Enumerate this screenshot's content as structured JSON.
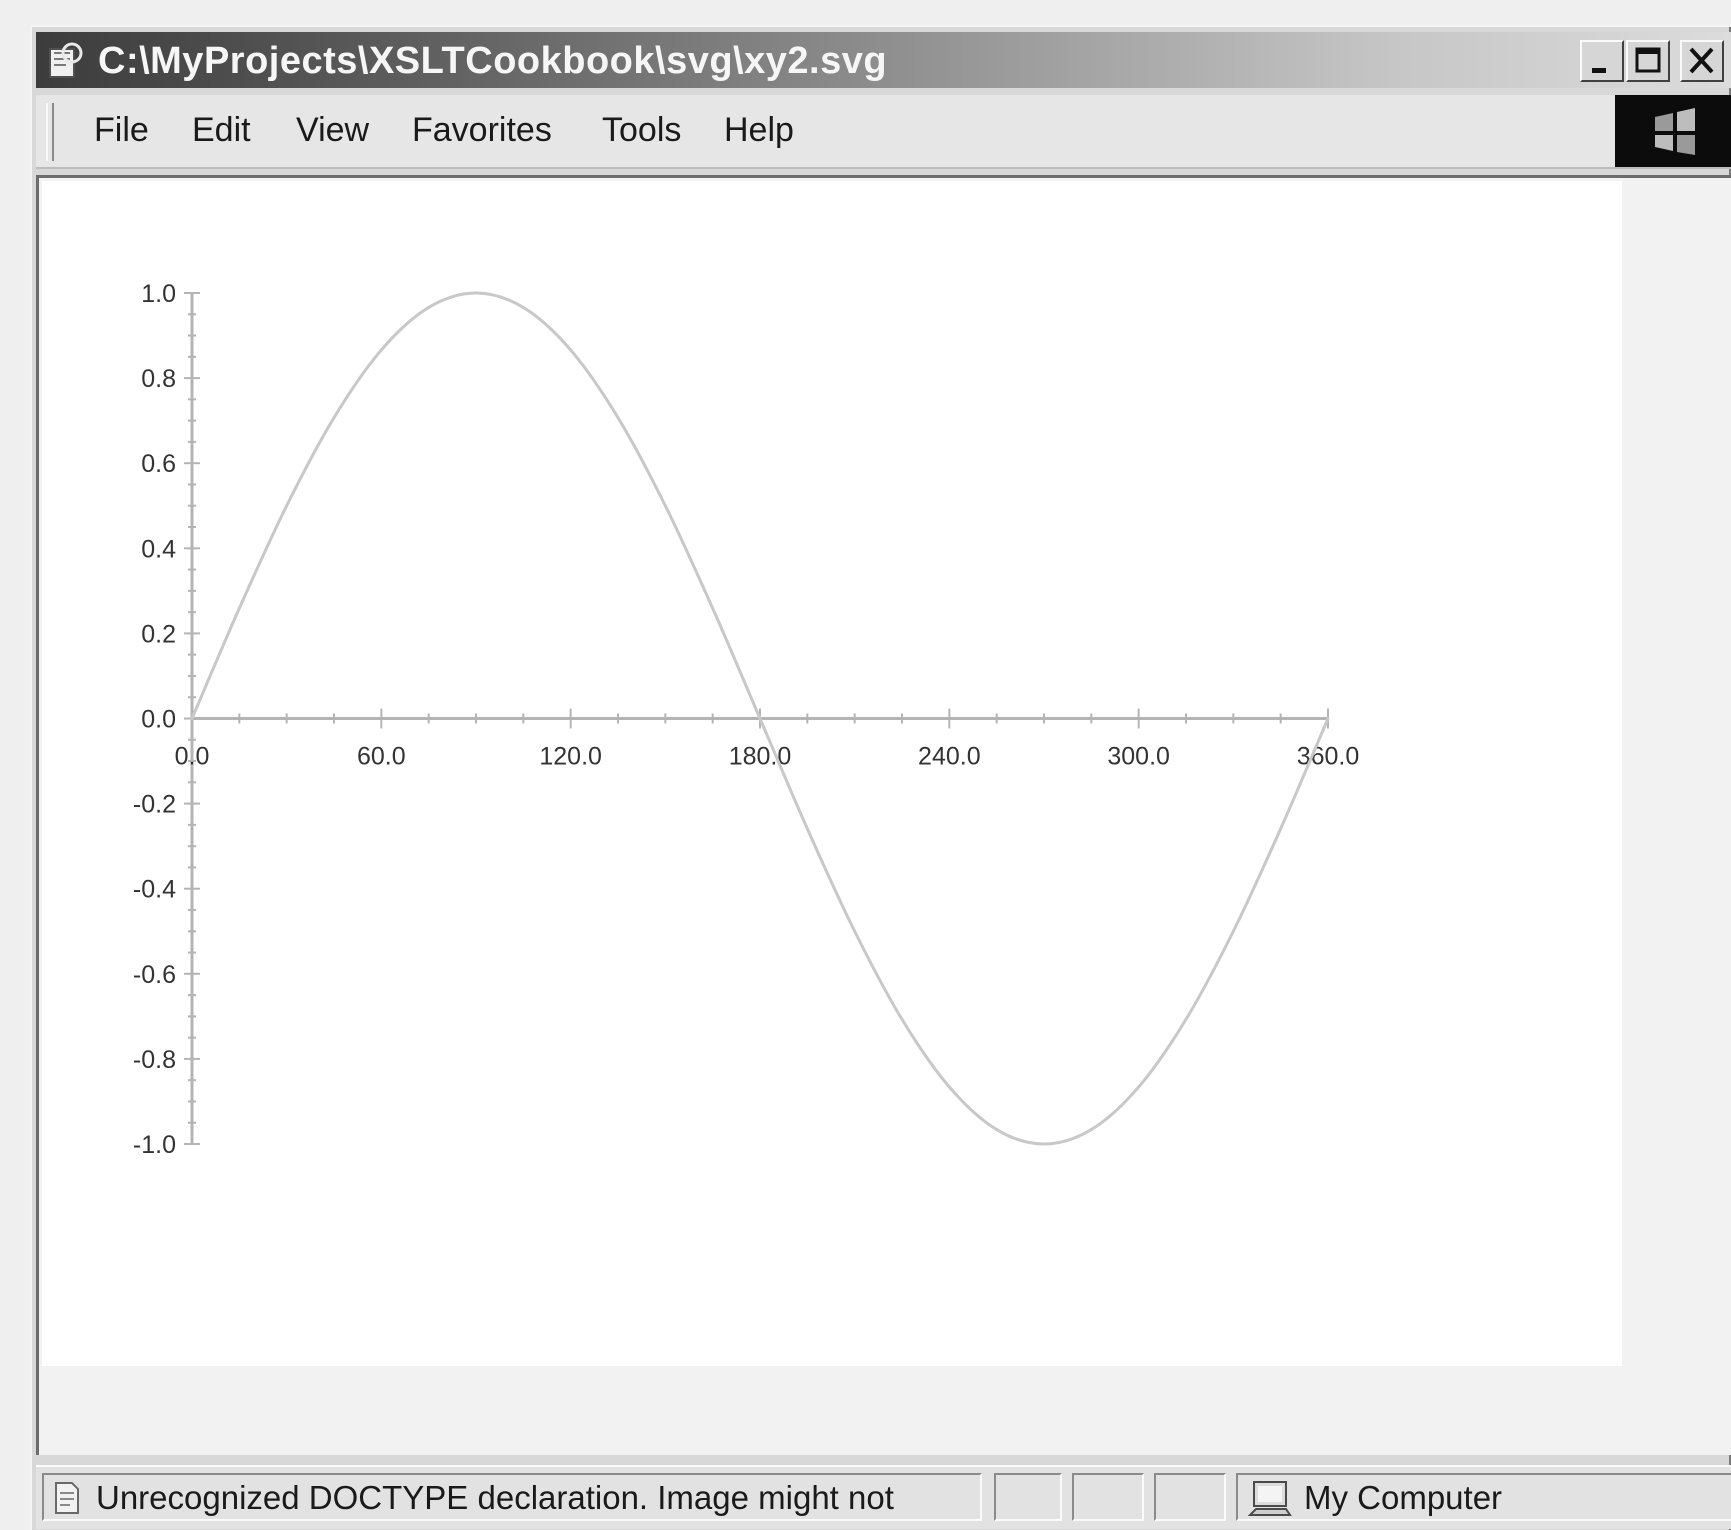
{
  "window": {
    "title": "C:\\MyProjects\\XSLTCookbook\\svg\\xy2.svg",
    "controls": [
      "minimize",
      "maximize",
      "close"
    ]
  },
  "menu": {
    "items": [
      "File",
      "Edit",
      "View",
      "Favorites",
      "Tools",
      "Help"
    ]
  },
  "status": {
    "message": "Unrecognized DOCTYPE declaration. Image might not",
    "zone": "My Computer"
  },
  "icons": {
    "app": "ie-document-icon",
    "status": "document-icon",
    "zone": "computer-icon",
    "throbber": "windows-logo-icon"
  },
  "colors": {
    "curve": "#c8c8c8",
    "axis": "#b4b4b4",
    "title_bar_dark": "#3c3c3c",
    "title_bar_light": "#dcdcdc"
  },
  "chart_data": {
    "type": "line",
    "title": "",
    "xlabel": "",
    "ylabel": "",
    "xlim": [
      0,
      360
    ],
    "ylim": [
      -1,
      1
    ],
    "x_ticks": [
      "0.0",
      "60.0",
      "120.0",
      "180.0",
      "240.0",
      "300.0",
      "360.0"
    ],
    "y_ticks": [
      "1.0",
      "0.8",
      "0.6",
      "0.4",
      "0.2",
      "0.0",
      "-0.2",
      "-0.4",
      "-0.6",
      "-0.8",
      "-1.0"
    ],
    "grid": false,
    "legend": "none",
    "series": [
      {
        "x": [
          0,
          15,
          30,
          45,
          60,
          75,
          90,
          105,
          120,
          135,
          150,
          165,
          180,
          195,
          210,
          225,
          240,
          255,
          270,
          285,
          300,
          315,
          330,
          345,
          360
        ],
        "y": [
          0.0,
          0.259,
          0.5,
          0.707,
          0.866,
          0.966,
          1.0,
          0.966,
          0.866,
          0.707,
          0.5,
          0.259,
          0.0,
          -0.259,
          -0.5,
          -0.707,
          -0.866,
          -0.966,
          -1.0,
          -0.966,
          -0.866,
          -0.707,
          -0.5,
          -0.259,
          0.0
        ]
      }
    ]
  }
}
